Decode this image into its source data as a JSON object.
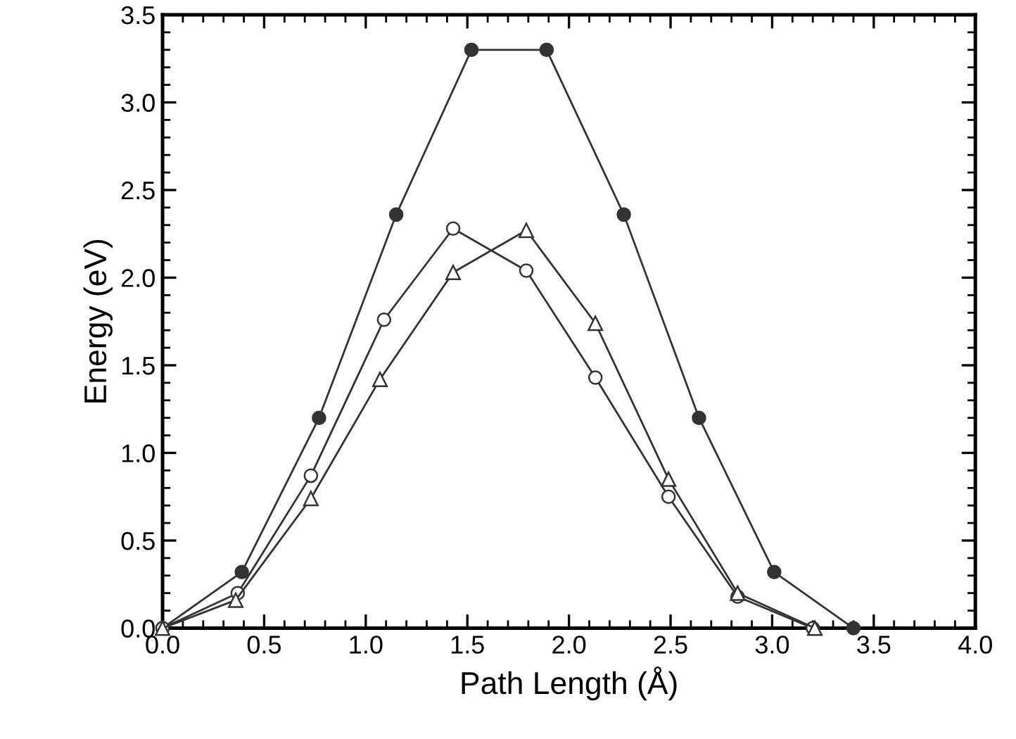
{
  "chart_data": {
    "type": "line",
    "xlabel": "Path Length (Å)",
    "ylabel": "Energy (eV)",
    "xlim": [
      0,
      4.0
    ],
    "ylim": [
      0,
      3.5
    ],
    "xticks": [
      {
        "value": 0,
        "label": "0.0"
      },
      0.5,
      {
        "value": 1,
        "label": "1.0"
      },
      1.5,
      {
        "value": 2,
        "label": "2.0"
      },
      2.5,
      {
        "value": 3,
        "label": "3.0"
      },
      3.5,
      {
        "value": 4,
        "label": "4.0"
      }
    ],
    "yticks": [
      {
        "value": 0,
        "label": "0.0"
      },
      0.5,
      {
        "value": 1,
        "label": "1.0"
      },
      1.5,
      {
        "value": 2,
        "label": "2.0"
      },
      2.5,
      {
        "value": 3,
        "label": "3.0"
      },
      3.5
    ],
    "grid": false,
    "legend": false,
    "line_style": "solid",
    "series": [
      {
        "color": "#333333",
        "marker": "circle",
        "x": [
          0,
          0.39,
          0.77,
          1.15,
          1.52,
          1.89,
          2.27,
          2.64,
          3.01,
          3.4
        ],
        "values": [
          0,
          0.32,
          1.2,
          2.36,
          3.3,
          3.3,
          2.36,
          1.2,
          0.32,
          0
        ]
      },
      {
        "color": "#333333",
        "marker": "circle",
        "x": [
          0,
          0.37,
          0.73,
          1.09,
          1.43,
          1.79,
          2.13,
          2.49,
          2.83,
          3.2
        ],
        "values": [
          0,
          0.2,
          0.87,
          1.76,
          2.28,
          2.04,
          1.43,
          0.75,
          0.18,
          0
        ]
      },
      {
        "color": "#333333",
        "marker": "triangle",
        "x": [
          0,
          0.36,
          0.73,
          1.07,
          1.43,
          1.79,
          2.13,
          2.49,
          2.83,
          3.21
        ],
        "values": [
          0,
          0.16,
          0.74,
          1.42,
          2.03,
          2.27,
          1.74,
          0.85,
          0.2,
          0
        ]
      }
    ]
  }
}
